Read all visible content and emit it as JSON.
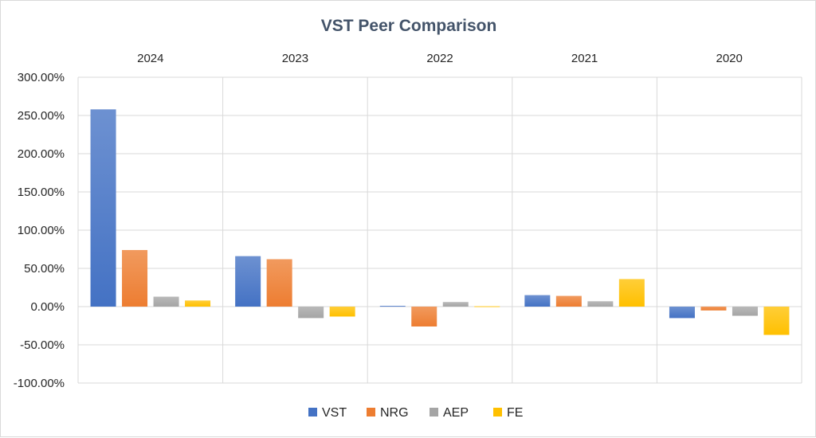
{
  "chart_data": {
    "type": "bar",
    "title": "VST Peer Comparison",
    "categories": [
      "2024",
      "2023",
      "2022",
      "2021",
      "2020"
    ],
    "series": [
      {
        "name": "VST",
        "values": [
          258,
          66,
          1,
          15,
          -15
        ]
      },
      {
        "name": "NRG",
        "values": [
          74,
          62,
          -26,
          14,
          -5
        ]
      },
      {
        "name": "AEP",
        "values": [
          13,
          -15,
          6,
          7,
          -12
        ]
      },
      {
        "name": "FE",
        "values": [
          8,
          -13,
          0.5,
          36,
          -37
        ]
      }
    ],
    "colors": [
      "#4472c4",
      "#ed7d31",
      "#a5a5a5",
      "#ffc000"
    ],
    "ylim": [
      -100,
      300
    ],
    "yticks": [
      300,
      250,
      200,
      150,
      100,
      50,
      0,
      -50,
      -100
    ],
    "ytick_labels": [
      "300.00%",
      "250.00%",
      "200.00%",
      "150.00%",
      "100.00%",
      "50.00%",
      "0.00%",
      "-50.00%",
      "-100.00%"
    ],
    "category_labels_position": "top",
    "legend_position": "bottom",
    "grid": true
  }
}
